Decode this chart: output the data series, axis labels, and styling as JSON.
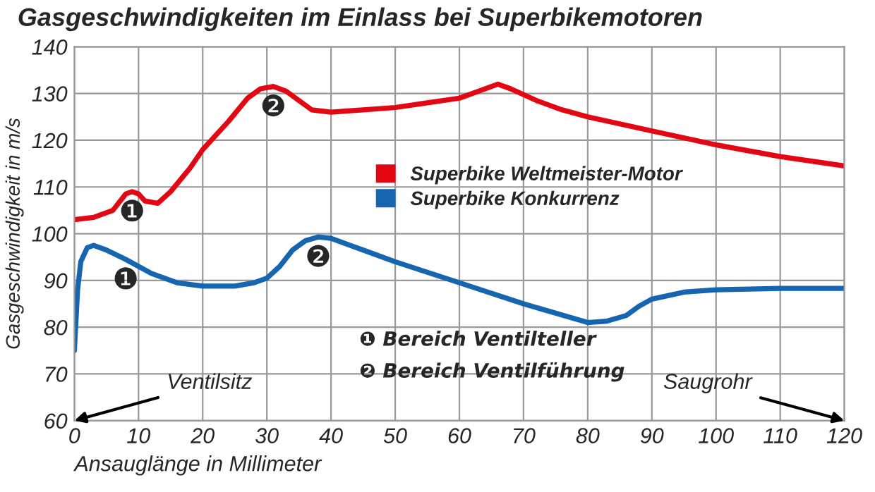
{
  "chart_data": {
    "type": "line",
    "title": "Gasgeschwindigkeiten im Einlass bei Superbikemotoren",
    "xlabel": "Ansauglänge in Millimeter",
    "ylabel": "Gasgeschwindigkeit in m/s",
    "xlim": [
      0,
      120
    ],
    "xticks": [
      0,
      10,
      20,
      30,
      40,
      50,
      60,
      70,
      80,
      90,
      100,
      110,
      120
    ],
    "ylim": [
      60,
      140
    ],
    "yticks": [
      60,
      70,
      80,
      90,
      100,
      110,
      120,
      130,
      140
    ],
    "grid": true,
    "legend": "center",
    "marker": "none",
    "line_style": "solid",
    "series": [
      {
        "name": "Superbike Weltmeister-Motor",
        "color": "#e30613",
        "x": [
          0,
          3,
          6,
          8,
          9,
          10,
          11,
          13,
          15,
          18,
          20,
          24,
          27,
          29,
          31,
          33,
          35,
          37,
          40,
          45,
          50,
          55,
          60,
          63,
          66,
          68,
          72,
          76,
          80,
          90,
          100,
          110,
          120
        ],
        "values": [
          103,
          103.5,
          105,
          108.5,
          109,
          108.5,
          107,
          106.5,
          109,
          114,
          118,
          124,
          129,
          131,
          131.5,
          130.5,
          128.5,
          126.5,
          126,
          126.5,
          127,
          128,
          129,
          130.5,
          132,
          131,
          128.5,
          126.5,
          125,
          122,
          119,
          116.5,
          114.5
        ]
      },
      {
        "name": "Superbike Konkurrenz",
        "color": "#1565b0",
        "x": [
          0,
          0.5,
          1,
          2,
          3,
          5,
          8,
          12,
          16,
          20,
          25,
          28,
          30,
          32,
          34,
          36,
          38,
          40,
          45,
          50,
          60,
          70,
          75,
          80,
          83,
          86,
          88,
          90,
          95,
          100,
          110,
          120
        ],
        "values": [
          75,
          88,
          94,
          97,
          97.5,
          96.5,
          94.5,
          91.5,
          89.5,
          88.8,
          88.8,
          89.5,
          90.5,
          93,
          96.5,
          98.5,
          99.3,
          99,
          96.5,
          94,
          89.5,
          85,
          83,
          81,
          81.3,
          82.5,
          84.5,
          86,
          87.5,
          88,
          88.3,
          88.3
        ]
      }
    ],
    "annotations": [
      {
        "text": "❶",
        "x": 9,
        "y": 109
      },
      {
        "text": "❷",
        "x": 31,
        "y": 131.5
      },
      {
        "text": "❶",
        "x": 8,
        "y": 94.5
      },
      {
        "text": "❷",
        "x": 38,
        "y": 99.3
      },
      "❶ Bereich Ventilteller",
      "❷ Bereich Ventilführung",
      "Ventilsitz",
      "Saugrohr"
    ]
  }
}
